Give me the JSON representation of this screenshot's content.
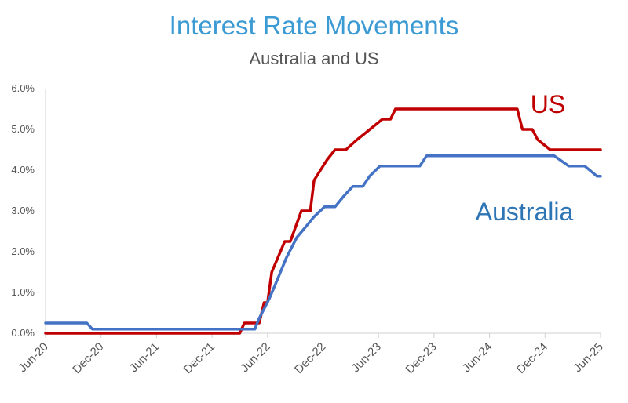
{
  "chart_data": {
    "type": "line",
    "title": "Interest Rate Movements",
    "subtitle": "Australia and US",
    "xlabel": "",
    "ylabel": "",
    "x_range": [
      "2020-06",
      "2025-06"
    ],
    "ylim": [
      0,
      6
    ],
    "y_ticks": [
      "0.0%",
      "1.0%",
      "2.0%",
      "3.0%",
      "4.0%",
      "5.0%",
      "6.0%"
    ],
    "x_ticks": [
      "Jun-20",
      "Dec-20",
      "Jun-21",
      "Dec-21",
      "Jun-22",
      "Dec-22",
      "Jun-23",
      "Dec-23",
      "Jun-24",
      "Dec-24",
      "Jun-25"
    ],
    "grid": false,
    "series": [
      {
        "name": "US",
        "color": "#c00000",
        "points": [
          [
            "2020-06-01",
            0.0
          ],
          [
            "2022-03-01",
            0.0
          ],
          [
            "2022-03-16",
            0.25
          ],
          [
            "2022-04-01",
            0.25
          ],
          [
            "2022-05-04",
            0.25
          ],
          [
            "2022-05-20",
            0.75
          ],
          [
            "2022-06-01",
            0.75
          ],
          [
            "2022-06-15",
            1.5
          ],
          [
            "2022-07-27",
            2.25
          ],
          [
            "2022-08-15",
            2.25
          ],
          [
            "2022-09-21",
            3.0
          ],
          [
            "2022-10-20",
            3.0
          ],
          [
            "2022-11-02",
            3.75
          ],
          [
            "2022-12-14",
            4.25
          ],
          [
            "2023-01-10",
            4.5
          ],
          [
            "2023-02-15",
            4.5
          ],
          [
            "2023-03-22",
            4.75
          ],
          [
            "2023-05-03",
            5.0
          ],
          [
            "2023-06-14",
            5.25
          ],
          [
            "2023-07-10",
            5.25
          ],
          [
            "2023-07-26",
            5.5
          ],
          [
            "2024-09-01",
            5.5
          ],
          [
            "2024-09-18",
            5.0
          ],
          [
            "2024-10-20",
            5.0
          ],
          [
            "2024-11-07",
            4.75
          ],
          [
            "2024-12-18",
            4.5
          ],
          [
            "2025-06-01",
            4.5
          ]
        ]
      },
      {
        "name": "Australia",
        "color": "#4472c4",
        "points": [
          [
            "2020-06-01",
            0.25
          ],
          [
            "2020-10-15",
            0.25
          ],
          [
            "2020-11-03",
            0.1
          ],
          [
            "2022-04-01",
            0.1
          ],
          [
            "2022-04-20",
            0.1
          ],
          [
            "2022-05-03",
            0.35
          ],
          [
            "2022-06-07",
            0.85
          ],
          [
            "2022-07-05",
            1.35
          ],
          [
            "2022-08-02",
            1.85
          ],
          [
            "2022-09-06",
            2.35
          ],
          [
            "2022-10-04",
            2.6
          ],
          [
            "2022-11-01",
            2.85
          ],
          [
            "2022-12-06",
            3.1
          ],
          [
            "2023-01-10",
            3.1
          ],
          [
            "2023-02-07",
            3.35
          ],
          [
            "2023-03-07",
            3.6
          ],
          [
            "2023-04-10",
            3.6
          ],
          [
            "2023-05-02",
            3.85
          ],
          [
            "2023-06-06",
            4.1
          ],
          [
            "2023-10-15",
            4.1
          ],
          [
            "2023-11-07",
            4.35
          ],
          [
            "2025-01-01",
            4.35
          ],
          [
            "2025-02-18",
            4.1
          ],
          [
            "2025-04-10",
            4.1
          ],
          [
            "2025-05-20",
            3.85
          ],
          [
            "2025-06-01",
            3.85
          ]
        ]
      }
    ]
  }
}
